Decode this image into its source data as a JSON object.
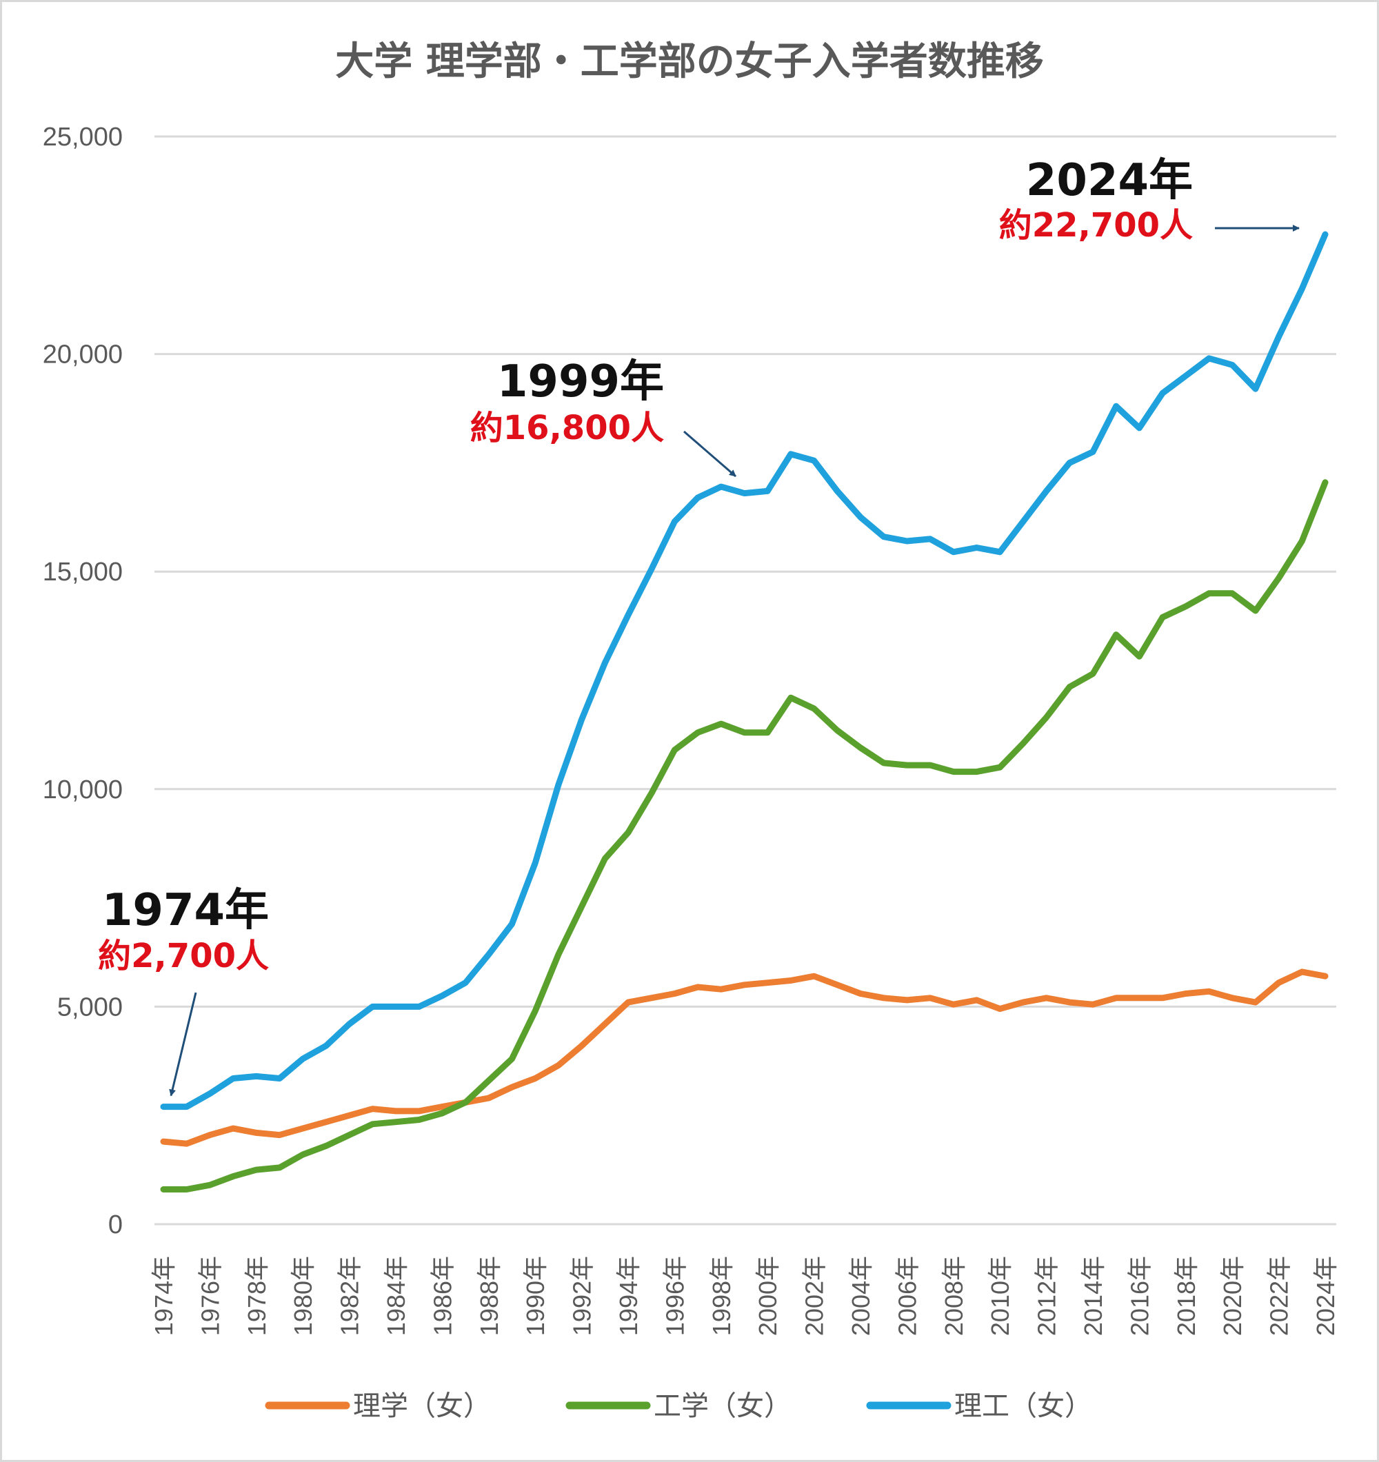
{
  "chart_data": {
    "type": "line",
    "title": "大学 理学部・工学部の女子入学者数推移",
    "xlabel": "",
    "ylabel": "",
    "ylim": [
      0,
      25000
    ],
    "yticks": [
      0,
      5000,
      10000,
      15000,
      20000,
      25000
    ],
    "ytick_labels": [
      "0",
      "5,000",
      "10,000",
      "15,000",
      "20,000",
      "25,000"
    ],
    "x": [
      "1974年",
      "1975年",
      "1976年",
      "1977年",
      "1978年",
      "1979年",
      "1980年",
      "1981年",
      "1982年",
      "1983年",
      "1984年",
      "1985年",
      "1986年",
      "1987年",
      "1988年",
      "1989年",
      "1990年",
      "1991年",
      "1992年",
      "1993年",
      "1994年",
      "1995年",
      "1996年",
      "1997年",
      "1998年",
      "1999年",
      "2000年",
      "2001年",
      "2002年",
      "2003年",
      "2004年",
      "2005年",
      "2006年",
      "2007年",
      "2008年",
      "2009年",
      "2010年",
      "2011年",
      "2012年",
      "2013年",
      "2014年",
      "2015年",
      "2016年",
      "2017年",
      "2018年",
      "2019年",
      "2020年",
      "2021年",
      "2022年",
      "2023年",
      "2024年"
    ],
    "xtick_labels": [
      "1974年",
      "1976年",
      "1978年",
      "1980年",
      "1982年",
      "1984年",
      "1986年",
      "1988年",
      "1990年",
      "1992年",
      "1994年",
      "1996年",
      "1998年",
      "2000年",
      "2002年",
      "2004年",
      "2006年",
      "2008年",
      "2010年",
      "2012年",
      "2014年",
      "2016年",
      "2018年",
      "2020年",
      "2022年",
      "2024年"
    ],
    "grid": true,
    "legend_position": "bottom",
    "series": [
      {
        "name": "理学（女）",
        "color": "#ed7d31",
        "values": [
          1900,
          1850,
          2050,
          2200,
          2100,
          2050,
          2200,
          2350,
          2500,
          2650,
          2600,
          2600,
          2700,
          2800,
          2900,
          3150,
          3350,
          3650,
          4100,
          4600,
          5100,
          5200,
          5300,
          5450,
          5400,
          5500,
          5550,
          5600,
          5700,
          5500,
          5300,
          5200,
          5150,
          5200,
          5050,
          5150,
          4950,
          5100,
          5200,
          5100,
          5050,
          5200,
          5200,
          5200,
          5300,
          5350,
          5200,
          5100,
          5550,
          5800,
          5700
        ]
      },
      {
        "name": "工学（女）",
        "color": "#5aa02c",
        "values": [
          800,
          800,
          900,
          1100,
          1250,
          1300,
          1600,
          1800,
          2050,
          2300,
          2350,
          2400,
          2550,
          2800,
          3300,
          3800,
          4900,
          6200,
          7300,
          8400,
          9000,
          9900,
          10900,
          11300,
          11500,
          11300,
          11300,
          12100,
          11850,
          11350,
          10950,
          10600,
          10550,
          10550,
          10400,
          10400,
          10500,
          11050,
          11650,
          12350,
          12650,
          13550,
          13050,
          13950,
          14200,
          14500,
          14500,
          14100,
          14850,
          15700,
          17050
        ]
      },
      {
        "name": "理工（女）",
        "color": "#1fa1dd",
        "values": [
          2700,
          2700,
          3000,
          3350,
          3400,
          3350,
          3800,
          4100,
          4600,
          5000,
          5000,
          5000,
          5250,
          5550,
          6200,
          6900,
          8300,
          10100,
          11600,
          12900,
          14000,
          15050,
          16150,
          16700,
          16950,
          16800,
          16850,
          17700,
          17550,
          16850,
          16250,
          15800,
          15700,
          15750,
          15450,
          15550,
          15450,
          16150,
          16850,
          17500,
          17750,
          18800,
          18300,
          19100,
          19500,
          19900,
          19750,
          19200,
          20400,
          21500,
          22750
        ]
      }
    ],
    "annotations": [
      {
        "year": "1974年",
        "value_text": "約2,700人"
      },
      {
        "year": "1999年",
        "value_text": "約16,800人"
      },
      {
        "year": "2024年",
        "value_text": "約22,700人"
      }
    ]
  }
}
